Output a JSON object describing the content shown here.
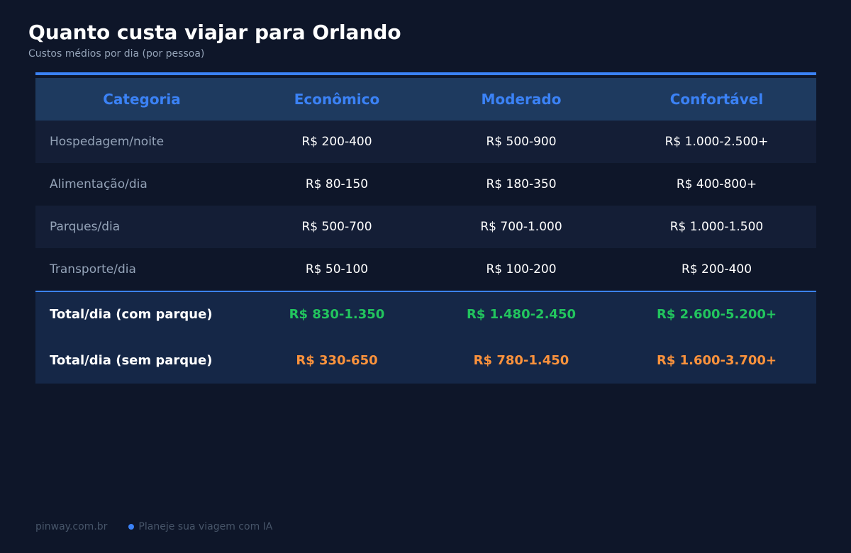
{
  "header": {
    "title": "Quanto custa viajar para Orlando",
    "subtitle": "Custos médios por dia (por pessoa)"
  },
  "colors": {
    "background": "#0e1629",
    "accent": "#3b82f6",
    "total_with_park": "#22c55e",
    "total_without_park": "#fb923c"
  },
  "chart_data": {
    "type": "table",
    "columns": [
      "Categoria",
      "Econômico",
      "Moderado",
      "Confortável"
    ],
    "rows": [
      [
        "Hospedagem/noite",
        "R$ 200-400",
        "R$ 500-900",
        "R$ 1.000-2.500+"
      ],
      [
        "Alimentação/dia",
        "R$ 80-150",
        "R$ 180-350",
        "R$ 400-800+"
      ],
      [
        "Parques/dia",
        "R$ 500-700",
        "R$ 700-1.000",
        "R$ 1.000-1.500"
      ],
      [
        "Transporte/dia",
        "R$ 50-100",
        "R$ 100-200",
        "R$ 200-400"
      ]
    ],
    "totals": [
      [
        "Total/dia (com parque)",
        "R$ 830-1.350",
        "R$ 1.480-2.450",
        "R$ 2.600-5.200+"
      ],
      [
        "Total/dia (sem parque)",
        "R$ 330-650",
        "R$ 780-1.450",
        "R$ 1.600-3.700+"
      ]
    ]
  },
  "footer": {
    "site": "pinway.com.br",
    "tagline": "Planeje sua viagem com IA"
  }
}
